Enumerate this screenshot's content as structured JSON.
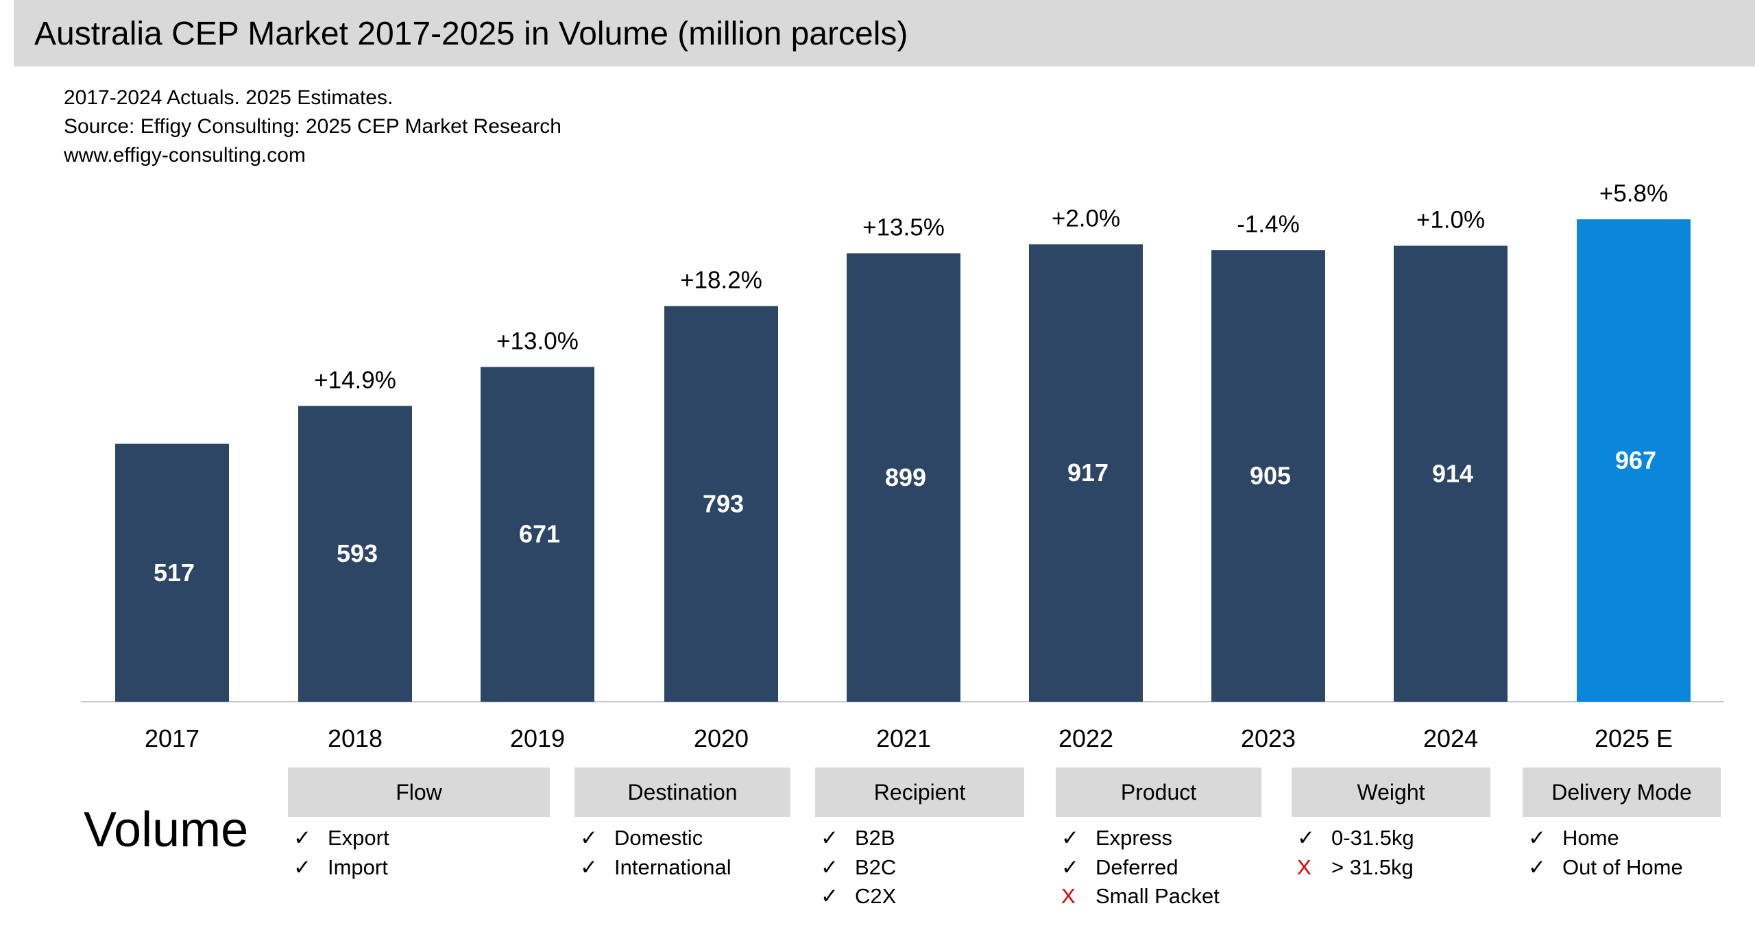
{
  "title": "Australia CEP Market 2017-2025 in Volume (million parcels)",
  "subtitle_lines": [
    "2017-2024 Actuals. 2025 Estimates.",
    "Source: Effigy Consulting: 2025 CEP Market Research",
    "www.effigy-consulting.com"
  ],
  "chart_data": {
    "type": "bar",
    "title": "Australia CEP Market 2017-2025 in Volume (million parcels)",
    "categories": [
      "2017",
      "2018",
      "2019",
      "2020",
      "2021",
      "2022",
      "2023",
      "2024",
      "2025 E"
    ],
    "values": [
      517,
      593,
      671,
      793,
      899,
      917,
      905,
      914,
      967
    ],
    "growth_labels": [
      "",
      "+14.9%",
      "+13.0%",
      "+18.2%",
      "+13.5%",
      "+2.0%",
      "-1.4%",
      "+1.0%",
      "+5.8%"
    ],
    "colors": {
      "actual": "#2d4665",
      "estimate": "#0a87db"
    },
    "ylim": [
      0,
      967
    ],
    "grid": false,
    "legend": "none"
  },
  "legend": {
    "label": "Volume",
    "groups": [
      {
        "header": "Flow",
        "items": [
          {
            "text": "Export",
            "included": true
          },
          {
            "text": "Import",
            "included": true
          }
        ]
      },
      {
        "header": "Destination",
        "items": [
          {
            "text": "Domestic",
            "included": true
          },
          {
            "text": "International",
            "included": true
          }
        ]
      },
      {
        "header": "Recipient",
        "items": [
          {
            "text": "B2B",
            "included": true
          },
          {
            "text": "B2C",
            "included": true
          },
          {
            "text": "C2X",
            "included": true
          }
        ]
      },
      {
        "header": "Product",
        "items": [
          {
            "text": "Express",
            "included": true
          },
          {
            "text": "Deferred",
            "included": true
          },
          {
            "text": "Small Packet",
            "included": false
          }
        ]
      },
      {
        "header": "Weight",
        "items": [
          {
            "text": "0-31.5kg",
            "included": true
          },
          {
            "text": "> 31.5kg",
            "included": false
          }
        ]
      },
      {
        "header": "Delivery Mode",
        "items": [
          {
            "text": "Home",
            "included": true
          },
          {
            "text": "Out of Home",
            "included": true
          }
        ]
      }
    ],
    "check_symbol": "✓",
    "cross_symbol": "X"
  }
}
